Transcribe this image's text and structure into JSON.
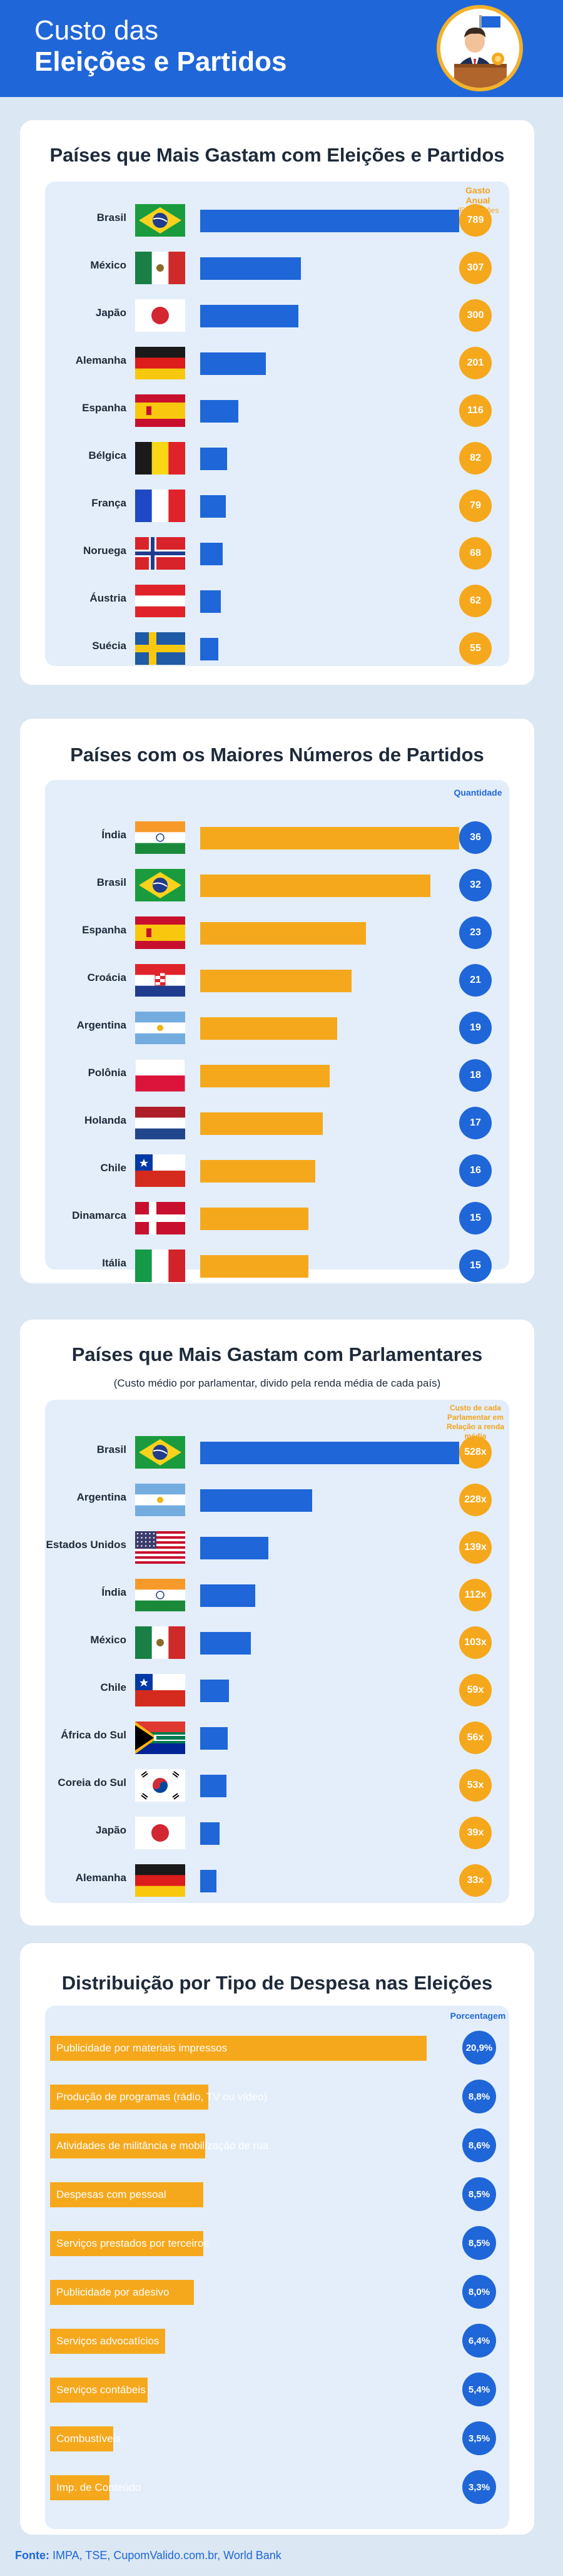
{
  "header": {
    "title_line1": "Custo das",
    "title_line2": "Eleições e Partidos"
  },
  "colors": {
    "primary_blue": "#1f66d8",
    "accent_orange": "#f6a81d",
    "background": "#dbe7f2"
  },
  "sections": [
    {
      "title": "Países que Mais Gastam com Eleições e Partidos",
      "column_header": "Gasto Anual",
      "column_subheader": "(Em milhões de U$)"
    },
    {
      "title": "Países com os Maiores Números de Partidos",
      "column_header": "Quantidade"
    },
    {
      "title": "Países que Mais Gastam com Parlamentares",
      "subtitle": "(Custo médio por parlamentar, divido pela renda média de cada país)",
      "column_header": "Custo de cada Parlamentar em Relação a renda média"
    },
    {
      "title": "Distribuição por Tipo de Despesa nas Eleições",
      "column_header": "Porcentagem"
    }
  ],
  "chart_data": [
    {
      "type": "bar",
      "orientation": "horizontal",
      "title": "Países que Mais Gastam com Eleições e Partidos",
      "categories": [
        "Brasil",
        "México",
        "Japão",
        "Alemanha",
        "Espanha",
        "Bélgica",
        "França",
        "Noruega",
        "Áustria",
        "Suécia"
      ],
      "values": [
        789,
        307,
        300,
        201,
        116,
        82,
        79,
        68,
        62,
        55
      ],
      "labels": [
        "789",
        "307",
        "300",
        "201",
        "116",
        "82",
        "79",
        "68",
        "62",
        "55"
      ],
      "flags": [
        "brazil",
        "mexico",
        "japan",
        "germany",
        "spain",
        "belgium",
        "france",
        "norway",
        "austria",
        "sweden"
      ],
      "color": "#1f66d8"
    },
    {
      "type": "bar",
      "orientation": "horizontal",
      "title": "Países com os Maiores Números de Partidos",
      "categories": [
        "Índia",
        "Brasil",
        "Espanha",
        "Croácia",
        "Argentina",
        "Polônia",
        "Holanda",
        "Chile",
        "Dinamarca",
        "Itália"
      ],
      "values": [
        36,
        32,
        23,
        21,
        19,
        18,
        17,
        16,
        15,
        15
      ],
      "labels": [
        "36",
        "32",
        "23",
        "21",
        "19",
        "18",
        "17",
        "16",
        "15",
        "15"
      ],
      "flags": [
        "india",
        "brazil",
        "spain",
        "croatia",
        "argentina",
        "poland",
        "netherlands",
        "chile",
        "denmark",
        "italy"
      ],
      "color": "#f6a81d"
    },
    {
      "type": "bar",
      "orientation": "horizontal",
      "title": "Países que Mais Gastam com Parlamentares",
      "categories": [
        "Brasil",
        "Argentina",
        "Estados Unidos",
        "Índia",
        "México",
        "Chile",
        "África do Sul",
        "Coreia do Sul",
        "Japão",
        "Alemanha"
      ],
      "values": [
        528,
        228,
        139,
        112,
        103,
        59,
        56,
        53,
        39,
        33
      ],
      "labels": [
        "528x",
        "228x",
        "139x",
        "112x",
        "103x",
        "59x",
        "56x",
        "53x",
        "39x",
        "33x"
      ],
      "flags": [
        "brazil",
        "argentina",
        "usa",
        "india",
        "mexico",
        "chile",
        "south-africa",
        "south-korea",
        "japan",
        "germany"
      ],
      "color": "#1f66d8"
    },
    {
      "type": "bar",
      "orientation": "horizontal",
      "title": "Distribuição por Tipo de Despesa nas Eleições",
      "categories": [
        "Publicidade por materiais impressos",
        "Produção de programas (rádio, TV ou vídeo)",
        "Atividades de militância e mobilização de rua",
        "Despesas com pessoal",
        "Serviços prestados por terceiros",
        "Publicidade por adesivo",
        "Serviços advocatícios",
        "Serviços contábeis",
        "Combustíveis",
        "Imp. de Conteúdo"
      ],
      "values": [
        20.9,
        8.8,
        8.6,
        8.5,
        8.5,
        8.0,
        6.4,
        5.4,
        3.5,
        3.3
      ],
      "labels": [
        "20,9%",
        "8,8%",
        "8,6%",
        "8,5%",
        "8,5%",
        "8,0%",
        "6,4%",
        "5,4%",
        "3,5%",
        "3,3%"
      ],
      "color": "#f6a81d"
    }
  ],
  "footer": {
    "label": "Fonte:",
    "text": "IMPA, TSE, CupomValido.com.br, World Bank"
  }
}
